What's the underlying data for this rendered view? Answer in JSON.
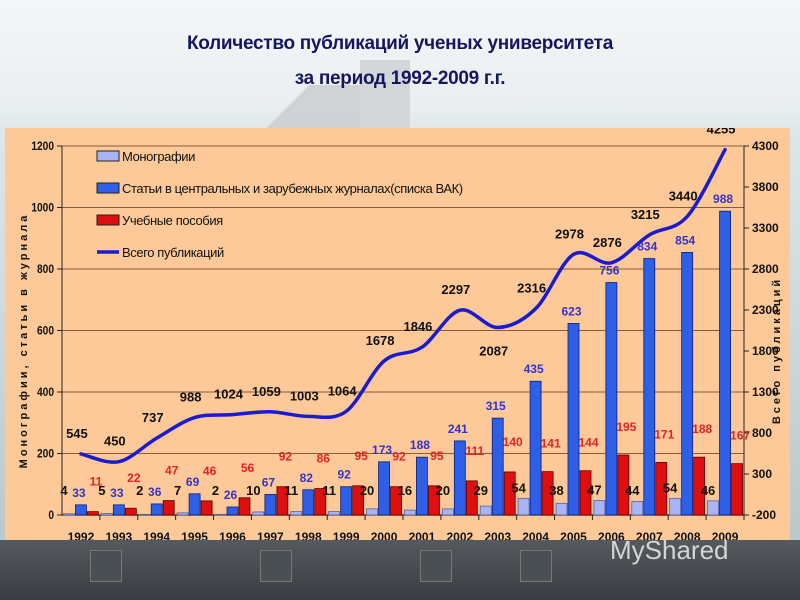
{
  "title": {
    "line1": "Количество публикаций ученых университета",
    "line2": "за период 1992-2009 г.г."
  },
  "watermark": "MyShared",
  "chart_data": {
    "type": "bar",
    "title": "Количество публикаций ученых университета за период 1992-2009 г.г.",
    "categories": [
      "1992",
      "1993",
      "1994",
      "1995",
      "1996",
      "1997",
      "1998",
      "1999",
      "2000",
      "2001",
      "2002",
      "2003",
      "2004",
      "2005",
      "2006",
      "2007",
      "2008",
      "2009"
    ],
    "series": [
      {
        "name": "Монографии",
        "type": "bar",
        "axis": "left",
        "color": "#a9b4f4",
        "values": [
          4,
          5,
          2,
          7,
          2,
          10,
          11,
          11,
          20,
          16,
          20,
          29,
          54,
          38,
          47,
          44,
          54,
          46
        ]
      },
      {
        "name": "Статьи в центральных и зарубежных журналах(списка ВАК)",
        "type": "bar",
        "axis": "left",
        "color": "#2f5fe6",
        "values": [
          33,
          33,
          36,
          69,
          26,
          67,
          82,
          92,
          173,
          188,
          241,
          315,
          435,
          623,
          756,
          834,
          854,
          988
        ]
      },
      {
        "name": "Учебные пособия",
        "type": "bar",
        "axis": "left",
        "color": "#dd0f0f",
        "values": [
          11,
          22,
          47,
          46,
          56,
          92,
          86,
          95,
          92,
          95,
          111,
          140,
          141,
          144,
          195,
          171,
          188,
          167
        ]
      },
      {
        "name": "Всего публикаций",
        "type": "line",
        "axis": "right",
        "color": "#1a1ad0",
        "values": [
          545,
          450,
          737,
          988,
          1024,
          1059,
          1003,
          1064,
          1678,
          1846,
          2297,
          2087,
          2316,
          2978,
          2876,
          3215,
          3440,
          4255
        ]
      }
    ],
    "ylabel": "Монографии, статьи в журнала",
    "ylabel_right": "Всего публикаций",
    "ylim": [
      0,
      1200
    ],
    "yticks": [
      0,
      200,
      400,
      600,
      800,
      1000,
      1200
    ],
    "ylim_right": [
      -200,
      4300
    ],
    "yticks_right": [
      -200,
      300,
      800,
      1300,
      1800,
      2300,
      2800,
      3300,
      3800,
      4300
    ],
    "grid": true,
    "legend_position": "upper-left-inside",
    "legend": [
      "Монографии",
      "Статьи в центральных и зарубежных журналах(списка ВАК)",
      "Учебные пособия",
      "Всего публикаций"
    ]
  }
}
